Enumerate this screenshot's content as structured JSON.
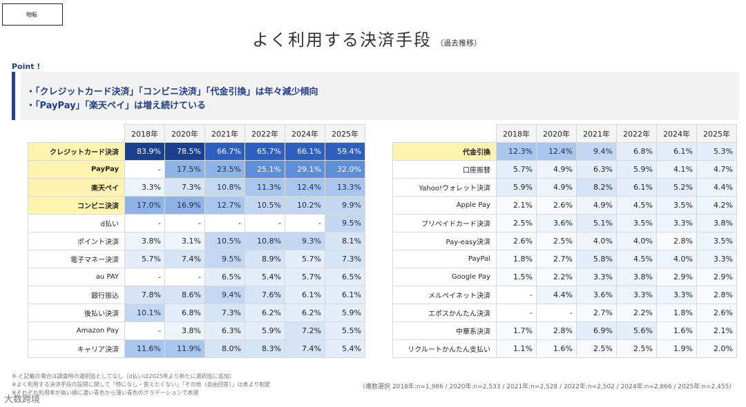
{
  "header": {
    "tag": "物販",
    "title": "よく利用する決済手段",
    "title_suffix": "（過去推移）"
  },
  "point": {
    "label": "Point !",
    "bullets": [
      "・「クレジットカード決済」「コンビニ決済」「代金引換」は年々減少傾向",
      "・「PayPay」「楽天ペイ」は増え続けている"
    ]
  },
  "years": [
    "2018年",
    "2020年",
    "2021年",
    "2022年",
    "2024年",
    "2025年"
  ],
  "left_table": [
    {
      "label": "クレジットカード決済",
      "hl": true,
      "values": [
        "83.9%",
        "78.5%",
        "66.7%",
        "65.7%",
        "66.1%",
        "59.4%"
      ]
    },
    {
      "label": "PayPay",
      "hl": true,
      "values": [
        "-",
        "17.5%",
        "23.5%",
        "25.1%",
        "29.1%",
        "32.0%"
      ]
    },
    {
      "label": "楽天ペイ",
      "hl": true,
      "values": [
        "3.3%",
        "7.3%",
        "10.8%",
        "11.3%",
        "12.4%",
        "13.3%"
      ]
    },
    {
      "label": "コンビニ決済",
      "hl": true,
      "values": [
        "17.0%",
        "16.9%",
        "12.7%",
        "10.5%",
        "10.2%",
        "9.9%"
      ]
    },
    {
      "label": "d払い",
      "hl": false,
      "values": [
        "-",
        "-",
        "-",
        "-",
        "-",
        "9.5%"
      ]
    },
    {
      "label": "ポイント決済",
      "hl": false,
      "values": [
        "3.8%",
        "3.1%",
        "10.5%",
        "10.8%",
        "9.3%",
        "8.1%"
      ]
    },
    {
      "label": "電子マネー決済",
      "hl": false,
      "values": [
        "5.7%",
        "7.4%",
        "9.5%",
        "8.9%",
        "5.7%",
        "7.3%"
      ]
    },
    {
      "label": "au PAY",
      "hl": false,
      "values": [
        "-",
        "-",
        "6.5%",
        "5.4%",
        "5.7%",
        "6.5%"
      ]
    },
    {
      "label": "銀行振込",
      "hl": false,
      "values": [
        "7.8%",
        "8.6%",
        "9.4%",
        "7.6%",
        "6.1%",
        "6.1%"
      ]
    },
    {
      "label": "後払い決済",
      "hl": false,
      "values": [
        "10.1%",
        "6.8%",
        "7.3%",
        "6.2%",
        "6.2%",
        "5.9%"
      ]
    },
    {
      "label": "Amazon Pay",
      "hl": false,
      "values": [
        "-",
        "3.8%",
        "6.3%",
        "5.9%",
        "7.2%",
        "5.5%"
      ]
    },
    {
      "label": "キャリア決済",
      "hl": false,
      "values": [
        "11.6%",
        "11.9%",
        "8.0%",
        "8.3%",
        "7.4%",
        "5.4%"
      ]
    }
  ],
  "right_table": [
    {
      "label": "代金引換",
      "hl": true,
      "values": [
        "12.3%",
        "12.4%",
        "9.4%",
        "6.8%",
        "6.1%",
        "5.3%"
      ]
    },
    {
      "label": "口座振替",
      "hl": false,
      "values": [
        "5.7%",
        "4.9%",
        "6.3%",
        "5.9%",
        "4.1%",
        "4.7%"
      ]
    },
    {
      "label": "Yahoo!ウォレット決済",
      "hl": false,
      "values": [
        "5.9%",
        "4.9%",
        "8.2%",
        "6.1%",
        "5.2%",
        "4.4%"
      ]
    },
    {
      "label": "Apple Pay",
      "hl": false,
      "values": [
        "2.1%",
        "2.6%",
        "4.9%",
        "4.5%",
        "3.5%",
        "4.2%"
      ]
    },
    {
      "label": "プリペイドカード決済",
      "hl": false,
      "values": [
        "2.5%",
        "3.6%",
        "5.1%",
        "3.5%",
        "3.3%",
        "3.8%"
      ]
    },
    {
      "label": "Pay-easy決済",
      "hl": false,
      "values": [
        "2.6%",
        "2.5%",
        "4.0%",
        "4.0%",
        "2.8%",
        "3.5%"
      ]
    },
    {
      "label": "PayPal",
      "hl": false,
      "values": [
        "1.8%",
        "2.7%",
        "5.8%",
        "4.5%",
        "4.0%",
        "3.3%"
      ]
    },
    {
      "label": "Google Pay",
      "hl": false,
      "values": [
        "1.5%",
        "2.2%",
        "3.3%",
        "3.8%",
        "2.9%",
        "2.9%"
      ]
    },
    {
      "label": "メルペイネット決済",
      "hl": false,
      "values": [
        "-",
        "4.4%",
        "3.6%",
        "3.3%",
        "3.3%",
        "2.8%"
      ]
    },
    {
      "label": "エポスかんたん決済",
      "hl": false,
      "values": [
        "-",
        "-",
        "2.7%",
        "2.2%",
        "1.8%",
        "2.6%"
      ]
    },
    {
      "label": "中華系決済",
      "hl": false,
      "values": [
        "1.7%",
        "2.8%",
        "6.9%",
        "5.6%",
        "1.6%",
        "2.1%"
      ]
    },
    {
      "label": "リクルートかんたん支払い",
      "hl": false,
      "values": [
        "1.1%",
        "1.6%",
        "2.5%",
        "2.5%",
        "1.9%",
        "2.0%"
      ]
    }
  ],
  "notes": [
    "※-と記載の場合は調査時の選択肢としてなし（d払いは2025年より新たに選択肢に追加）",
    "※よく利用する決済手段の設問に関して「特になし・答えたくない」「その他（自由回答）」は表より割愛",
    "※それぞれ利用率が高い順に濃い青色から薄い青色のグラデーションで表現"
  ],
  "sample_note": "（複数選択 2018年:n=1,986 / 2020年:n=2,533 / 2021年:n=2,528 / 2022年:n=2,502 / 2024年:n=2,866 / 2025年:n=2,455）",
  "watermark": "大数跨境"
}
